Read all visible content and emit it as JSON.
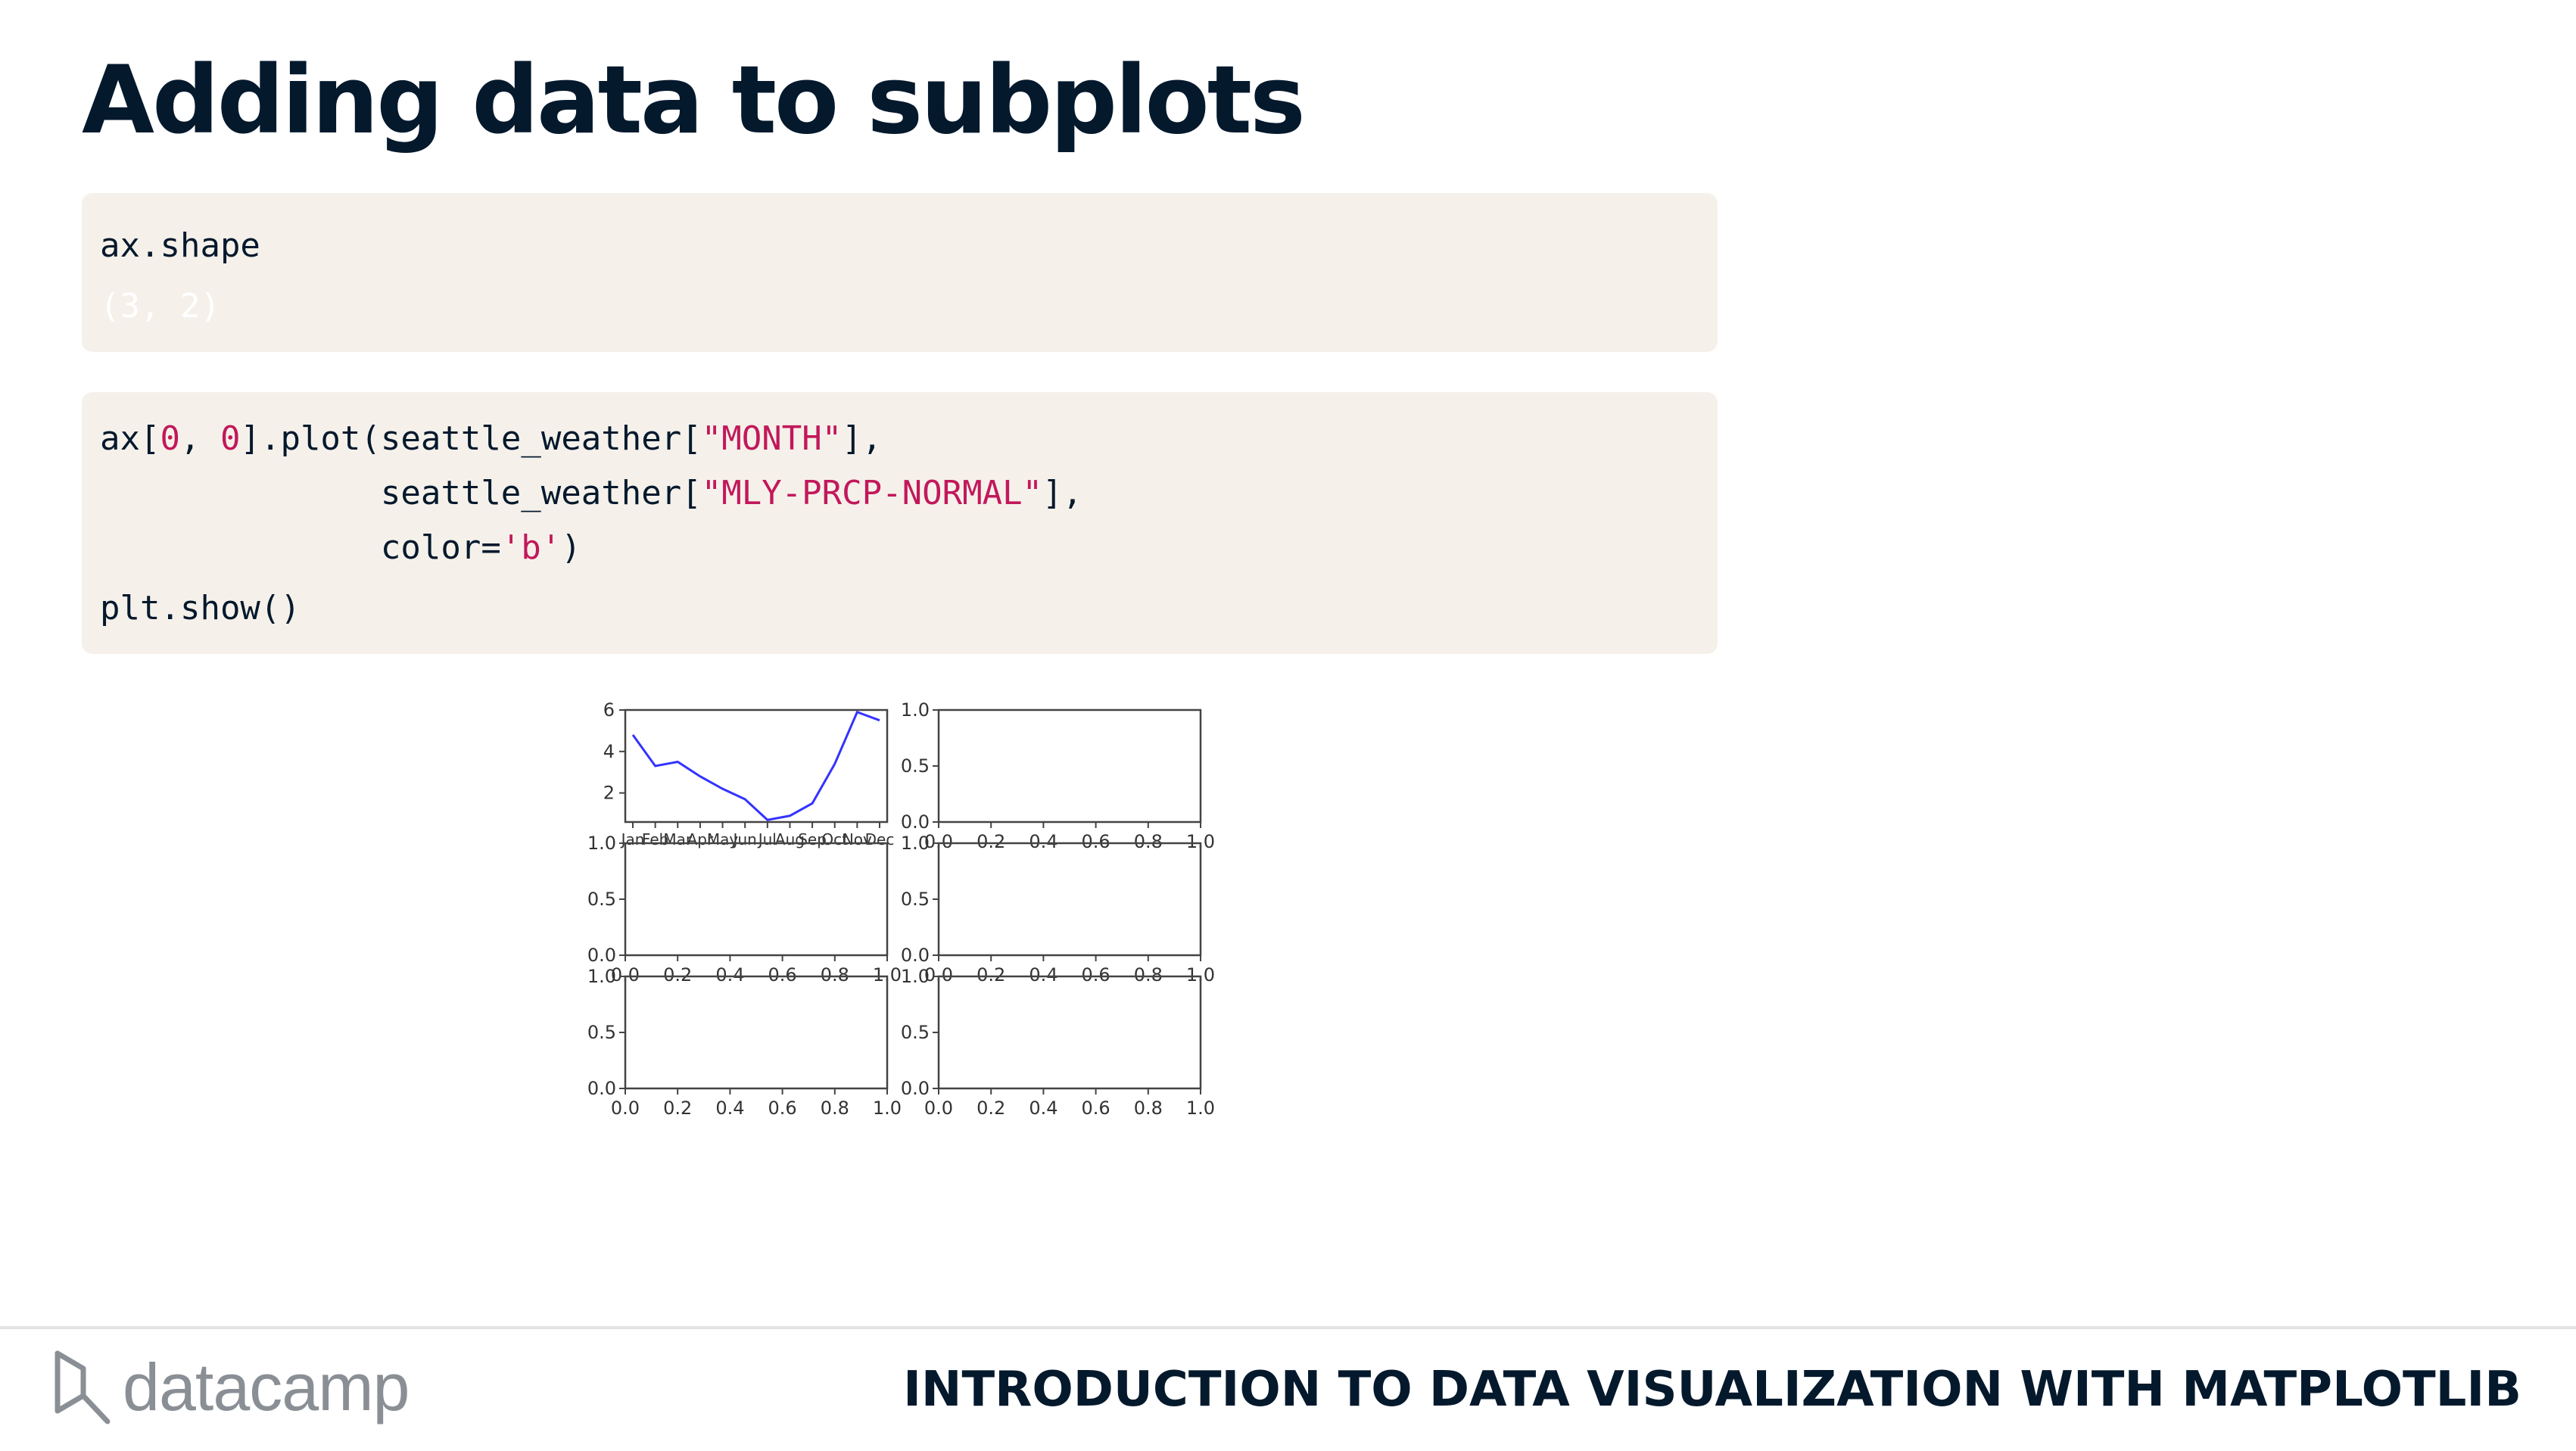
{
  "slide": {
    "title": "Adding data to subplots",
    "course_title": "INTRODUCTION TO DATA VISUALIZATION WITH MATPLOTLIB",
    "logo_text": "datacamp",
    "logo_icon": "datacamp-logo-icon"
  },
  "code_blocks": [
    {
      "lines": [
        {
          "tokens": [
            {
              "t": "ax.shape",
              "k": "code"
            }
          ]
        },
        {
          "tokens": [
            {
              "t": "(3, 2)",
              "k": "output"
            }
          ]
        }
      ]
    },
    {
      "lines": [
        {
          "tokens": [
            {
              "t": "ax[",
              "k": "code"
            },
            {
              "t": "0",
              "k": "num"
            },
            {
              "t": ", ",
              "k": "code"
            },
            {
              "t": "0",
              "k": "num"
            },
            {
              "t": "].plot(seattle_weather[",
              "k": "code"
            },
            {
              "t": "\"MONTH\"",
              "k": "str"
            },
            {
              "t": "],",
              "k": "code"
            }
          ]
        },
        {
          "tokens": [
            {
              "t": "              seattle_weather[",
              "k": "code"
            },
            {
              "t": "\"MLY-PRCP-NORMAL\"",
              "k": "str"
            },
            {
              "t": "],",
              "k": "code"
            }
          ]
        },
        {
          "tokens": [
            {
              "t": "              color=",
              "k": "code"
            },
            {
              "t": "'b'",
              "k": "str"
            },
            {
              "t": ")",
              "k": "code"
            }
          ]
        },
        {
          "tokens": [
            {
              "t": "plt.show()",
              "k": "code"
            }
          ]
        }
      ]
    }
  ],
  "colors": {
    "title": "#05192d",
    "code_bg": "#f5f1ea",
    "string": "#c2185b",
    "line": "#3333ff",
    "axes": "#444444",
    "footer_rule": "#e3e3e3",
    "logo": "#8a8f96"
  },
  "chart_data": [
    {
      "type": "line",
      "grid_position": "row 1, col 1",
      "color": "b",
      "x": [
        "Jan",
        "Feb",
        "Mar",
        "Apr",
        "May",
        "Jun",
        "Jul",
        "Aug",
        "Sep",
        "Oct",
        "Nov",
        "Dec"
      ],
      "y": [
        4.8,
        3.3,
        3.5,
        2.8,
        2.2,
        1.7,
        0.7,
        0.9,
        1.5,
        3.4,
        5.9,
        5.5
      ],
      "ylim": [
        0.6,
        6
      ],
      "yticks": [
        "2",
        "4",
        "6"
      ],
      "xtick_labels": [
        "Jan",
        "Feb",
        "Mar",
        "Apr",
        "May",
        "Jun",
        "Jul",
        "Aug",
        "Sep",
        "Oct",
        "Nov",
        "Dec"
      ]
    },
    {
      "type": "line",
      "grid_position": "row 1, col 2",
      "series": [],
      "xlim": [
        0,
        1
      ],
      "ylim": [
        0,
        1
      ],
      "xticks": [
        "0.0",
        "0.2",
        "0.4",
        "0.6",
        "0.8",
        "1.0"
      ],
      "yticks": [
        "0.0",
        "0.5",
        "1.0"
      ]
    },
    {
      "type": "line",
      "grid_position": "row 2, col 1",
      "series": [],
      "xlim": [
        0,
        1
      ],
      "ylim": [
        0,
        1
      ],
      "xticks": [
        "0.0",
        "0.2",
        "0.4",
        "0.6",
        "0.8",
        "1.0"
      ],
      "yticks": [
        "0.0",
        "0.5",
        "1.0"
      ]
    },
    {
      "type": "line",
      "grid_position": "row 2, col 2",
      "series": [],
      "xlim": [
        0,
        1
      ],
      "ylim": [
        0,
        1
      ],
      "xticks": [
        "0.0",
        "0.2",
        "0.4",
        "0.6",
        "0.8",
        "1.0"
      ],
      "yticks": [
        "0.0",
        "0.5",
        "1.0"
      ]
    },
    {
      "type": "line",
      "grid_position": "row 3, col 1",
      "series": [],
      "xlim": [
        0,
        1
      ],
      "ylim": [
        0,
        1
      ],
      "xticks": [
        "0.0",
        "0.2",
        "0.4",
        "0.6",
        "0.8",
        "1.0"
      ],
      "yticks": [
        "0.0",
        "0.5",
        "1.0"
      ]
    },
    {
      "type": "line",
      "grid_position": "row 3, col 2",
      "series": [],
      "xlim": [
        0,
        1
      ],
      "ylim": [
        0,
        1
      ],
      "xticks": [
        "0.0",
        "0.2",
        "0.4",
        "0.6",
        "0.8",
        "1.0"
      ],
      "yticks": [
        "0.0",
        "0.5",
        "1.0"
      ]
    }
  ]
}
